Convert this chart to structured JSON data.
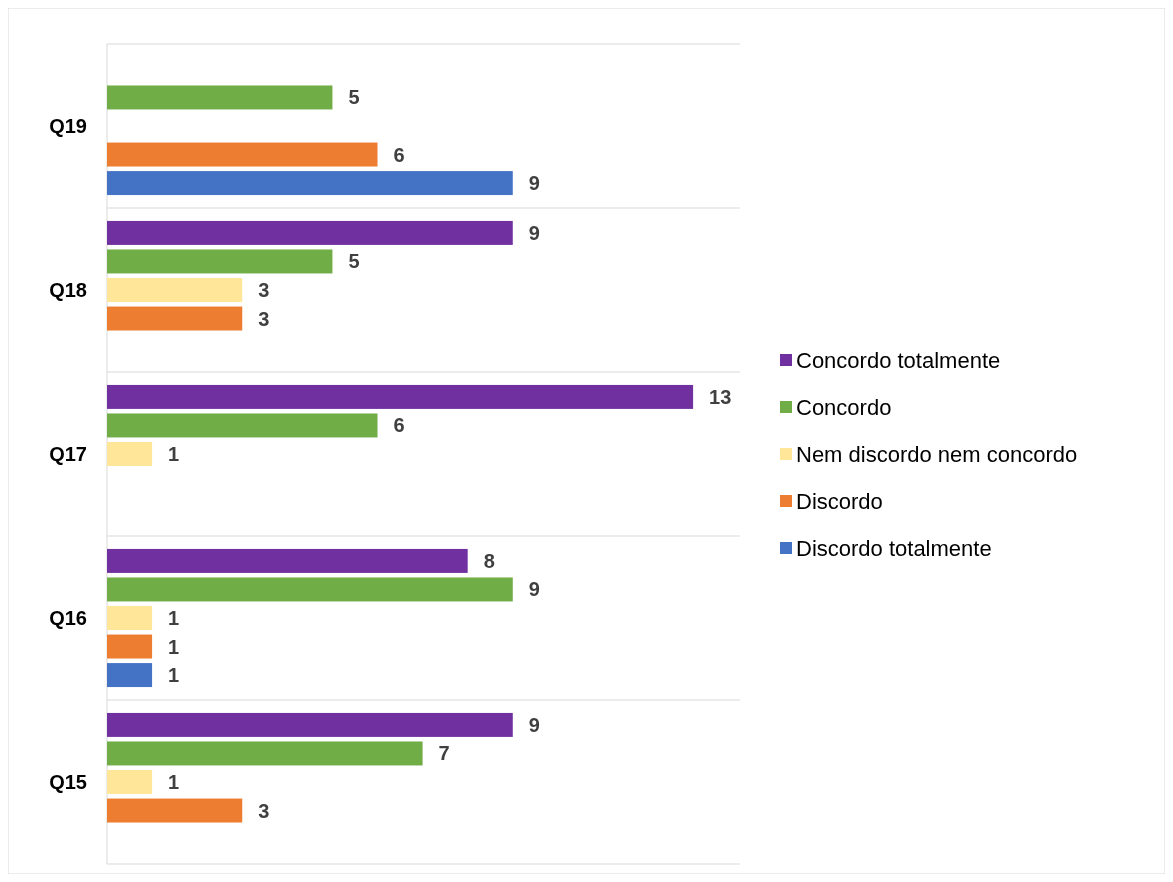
{
  "chart_data": {
    "type": "bar",
    "orientation": "horizontal",
    "categories": [
      "Q19",
      "Q18",
      "Q17",
      "Q16",
      "Q15"
    ],
    "series": [
      {
        "name": "Concordo totalmente",
        "color": "#7030a0",
        "values": [
          null,
          9,
          13,
          8,
          9
        ]
      },
      {
        "name": "Concordo",
        "color": "#70ad47",
        "values": [
          5,
          5,
          6,
          9,
          7
        ]
      },
      {
        "name": "Nem discordo nem concordo",
        "color": "#ffe699",
        "values": [
          null,
          3,
          1,
          1,
          1
        ]
      },
      {
        "name": "Discordo",
        "color": "#ed7d31",
        "values": [
          6,
          3,
          null,
          1,
          3
        ]
      },
      {
        "name": "Discordo totalmente",
        "color": "#4472c4",
        "values": [
          9,
          null,
          null,
          1,
          null
        ]
      }
    ],
    "data_labels": true,
    "grid": "y",
    "legend": "right"
  }
}
